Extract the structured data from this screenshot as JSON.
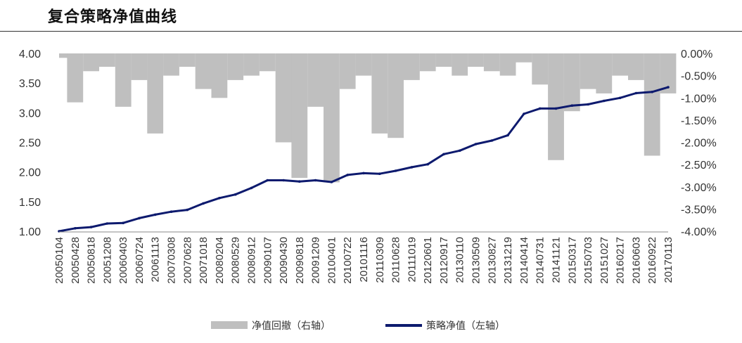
{
  "chart_data": {
    "type": "line",
    "title": "复合策略净值曲线",
    "x": [
      "20050104",
      "20050428",
      "20050818",
      "20051208",
      "20060403",
      "20060724",
      "20061113",
      "20070308",
      "20070628",
      "20071018",
      "20080204",
      "20080529",
      "20080912",
      "20090107",
      "20090430",
      "20090818",
      "20091209",
      "20100401",
      "20100722",
      "20101116",
      "20110309",
      "20110628",
      "20111019",
      "20120601",
      "20120917",
      "20130110",
      "20130509",
      "20130827",
      "20131219",
      "20140414",
      "20140731",
      "20141121",
      "20150317",
      "20150703",
      "20151027",
      "20160217",
      "20160603",
      "20160922",
      "20170113"
    ],
    "y_left_ticks": [
      "4.00",
      "3.50",
      "3.00",
      "2.50",
      "2.00",
      "1.50",
      "1.00"
    ],
    "y_right_ticks": [
      "0.00%",
      "-0.50%",
      "-1.00%",
      "-1.50%",
      "-2.00%",
      "-2.50%",
      "-3.00%",
      "-3.50%",
      "-4.00%"
    ],
    "ylim_left": [
      1.0,
      4.0
    ],
    "ylim_right": [
      -4.0,
      0.0
    ],
    "series": [
      {
        "name": "策略净值（左轴）",
        "axis": "left",
        "kind": "line",
        "color": "#0d1a6e",
        "values": [
          1.0,
          1.05,
          1.07,
          1.13,
          1.14,
          1.22,
          1.28,
          1.33,
          1.36,
          1.47,
          1.56,
          1.62,
          1.73,
          1.86,
          1.86,
          1.84,
          1.86,
          1.83,
          1.95,
          1.98,
          1.97,
          2.02,
          2.08,
          2.13,
          2.3,
          2.36,
          2.47,
          2.53,
          2.62,
          2.98,
          3.07,
          3.07,
          3.12,
          3.14,
          3.2,
          3.25,
          3.33,
          3.35,
          3.43
        ]
      },
      {
        "name": "净值回撤（右轴）",
        "axis": "right",
        "kind": "area",
        "color": "#bfbfbf",
        "values": [
          -0.1,
          -1.1,
          -0.4,
          -0.3,
          -1.2,
          -0.6,
          -1.8,
          -0.5,
          -0.3,
          -0.8,
          -1.0,
          -0.6,
          -0.5,
          -0.4,
          -2.0,
          -2.8,
          -1.2,
          -2.9,
          -0.8,
          -0.5,
          -1.8,
          -1.9,
          -0.6,
          -0.4,
          -0.3,
          -0.5,
          -0.3,
          -0.4,
          -0.5,
          -0.2,
          -0.7,
          -2.4,
          -1.3,
          -0.8,
          -0.9,
          -0.5,
          -0.6,
          -2.3,
          -0.9
        ]
      }
    ],
    "legend": [
      {
        "label": "净值回撤（右轴）",
        "kind": "area",
        "color": "#bfbfbf"
      },
      {
        "label": "策略净值（左轴）",
        "kind": "line",
        "color": "#0d1a6e"
      }
    ],
    "legend_position": "bottom"
  }
}
